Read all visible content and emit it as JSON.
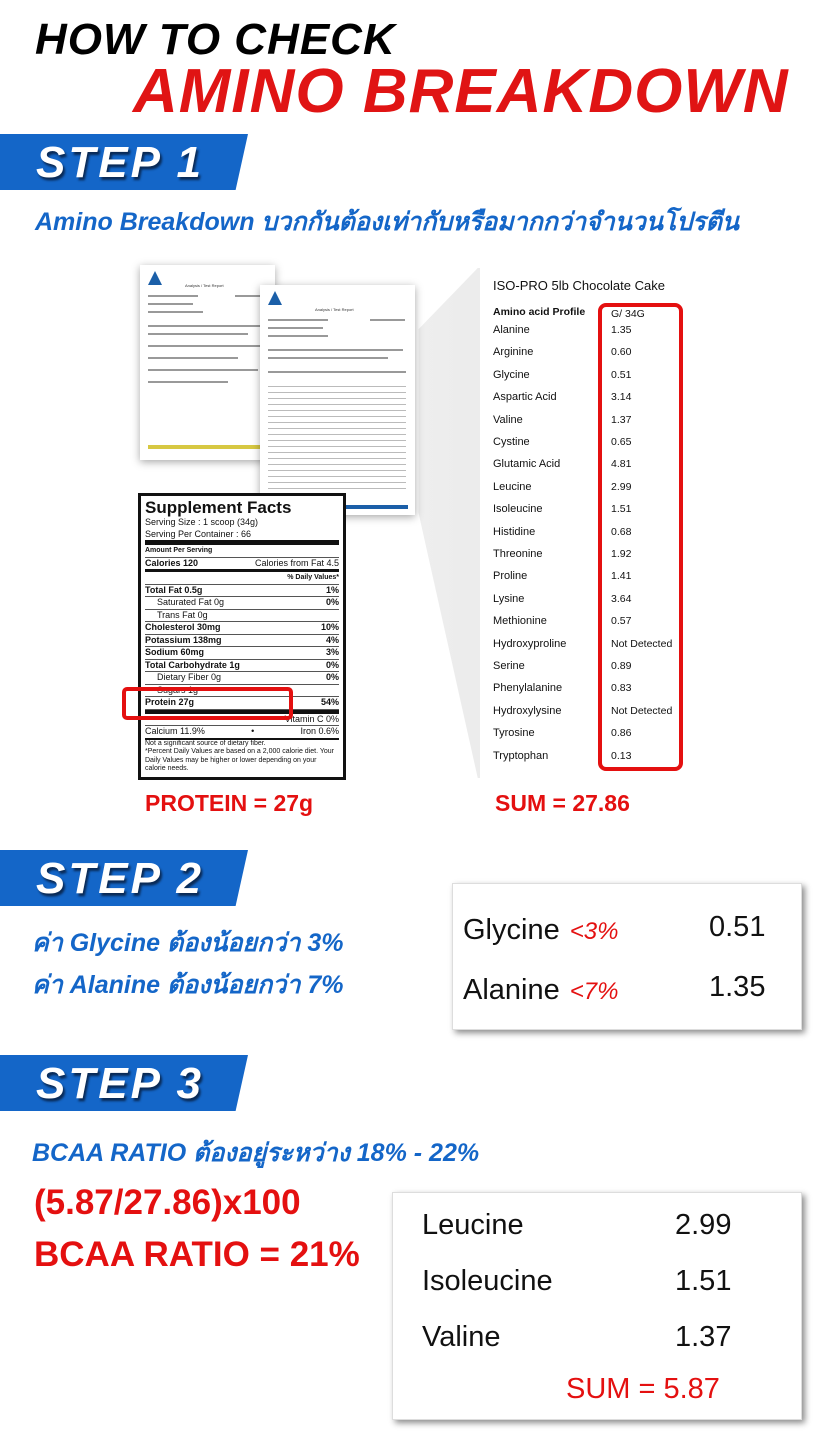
{
  "title": {
    "line1": "HOW TO CHECK",
    "line2": "AMINO BREAKDOWN"
  },
  "colors": {
    "red": "#e41010",
    "blue": "#1466c8"
  },
  "step1": {
    "label": "STEP 1",
    "subtitle": "Amino Breakdown บวกกันต้องเท่ากับหรือมากกว่าจำนวนโปรตีน",
    "report": {
      "title": "Analysis / Test Report"
    },
    "amino_table": {
      "product": "ISO-PRO 5lb Chocolate Cake",
      "header_name": "Amino acid Profile",
      "header_unit": "G/ 34G",
      "rows": [
        {
          "name": "Alanine",
          "value": "1.35"
        },
        {
          "name": "Arginine",
          "value": "0.60"
        },
        {
          "name": "Glycine",
          "value": "0.51"
        },
        {
          "name": "Aspartic Acid",
          "value": "3.14"
        },
        {
          "name": "Valine",
          "value": "1.37"
        },
        {
          "name": "Cystine",
          "value": "0.65"
        },
        {
          "name": "Glutamic Acid",
          "value": "4.81"
        },
        {
          "name": "Leucine",
          "value": "2.99"
        },
        {
          "name": "Isoleucine",
          "value": "1.51"
        },
        {
          "name": "Histidine",
          "value": "0.68"
        },
        {
          "name": "Threonine",
          "value": "1.92"
        },
        {
          "name": "Proline",
          "value": "1.41"
        },
        {
          "name": "Lysine",
          "value": "3.64"
        },
        {
          "name": "Methionine",
          "value": "0.57"
        },
        {
          "name": "Hydroxyproline",
          "value": "Not Detected"
        },
        {
          "name": "Serine",
          "value": "0.89"
        },
        {
          "name": "Phenylalanine",
          "value": "0.83"
        },
        {
          "name": "Hydroxylysine",
          "value": "Not Detected"
        },
        {
          "name": "Tyrosine",
          "value": "0.86"
        },
        {
          "name": "Tryptophan",
          "value": "0.13"
        }
      ]
    },
    "supplement_facts": {
      "title": "Supplement Facts",
      "serving_size": "Serving Size : 1 scoop (34g)",
      "servings": "Serving Per Container : 66",
      "amount_per_serving": "Amount Per Serving",
      "calories": "Calories 120",
      "calories_fat": "Calories from Fat 4.5",
      "dv_header": "% Daily Values*",
      "rows": [
        {
          "label": "Total Fat 0.5g",
          "dv": "1%",
          "bold": true,
          "indent": false
        },
        {
          "label": "Saturated Fat 0g",
          "dv": "0%",
          "bold": false,
          "indent": true
        },
        {
          "label": "Trans Fat 0g",
          "dv": "",
          "bold": false,
          "indent": true
        },
        {
          "label": "Cholesterol 30mg",
          "dv": "10%",
          "bold": true,
          "indent": false
        },
        {
          "label": "Potassium 138mg",
          "dv": "4%",
          "bold": true,
          "indent": false
        },
        {
          "label": "Sodium 60mg",
          "dv": "3%",
          "bold": true,
          "indent": false
        },
        {
          "label": "Total Carbohydrate 1g",
          "dv": "0%",
          "bold": true,
          "indent": false
        },
        {
          "label": "Dietary Fiber 0g",
          "dv": "0%",
          "bold": false,
          "indent": true
        },
        {
          "label": "Sugars 1g",
          "dv": "",
          "bold": false,
          "indent": true
        },
        {
          "label": "Protein 27g",
          "dv": "54%",
          "bold": true,
          "indent": false
        }
      ],
      "vitamin_c": "Vitamin C 0%",
      "calcium": "Calcium 11.9%",
      "iron": "Iron 0.6%",
      "footnote1": "Not a significant source of dietary fiber.",
      "footnote2": "*Percent Daily Values are based on a 2,000 calorie diet. Your Daily Values may be higher or lower depending on your calorie needs."
    },
    "protein_label": "PROTEIN = 27g",
    "sum_label": "SUM = 27.86"
  },
  "step2": {
    "label": "STEP 2",
    "rule1": "ค่า Glycine ต้องน้อยกว่า 3%",
    "rule2": "ค่า Alanine ต้องน้อยกว่า 7%",
    "rows": [
      {
        "name": "Glycine",
        "limit": "<3%",
        "value": "0.51"
      },
      {
        "name": "Alanine",
        "limit": "<7%",
        "value": "1.35"
      }
    ]
  },
  "step3": {
    "label": "STEP 3",
    "rule": "BCAA RATIO ต้องอยู่ระหว่าง 18% - 22%",
    "formula": "(5.87/27.86)x100",
    "result": "BCAA RATIO = 21%",
    "rows": [
      {
        "name": "Leucine",
        "value": "2.99"
      },
      {
        "name": "Isoleucine",
        "value": "1.51"
      },
      {
        "name": "Valine",
        "value": "1.37"
      }
    ],
    "sum": "SUM = 5.87"
  }
}
